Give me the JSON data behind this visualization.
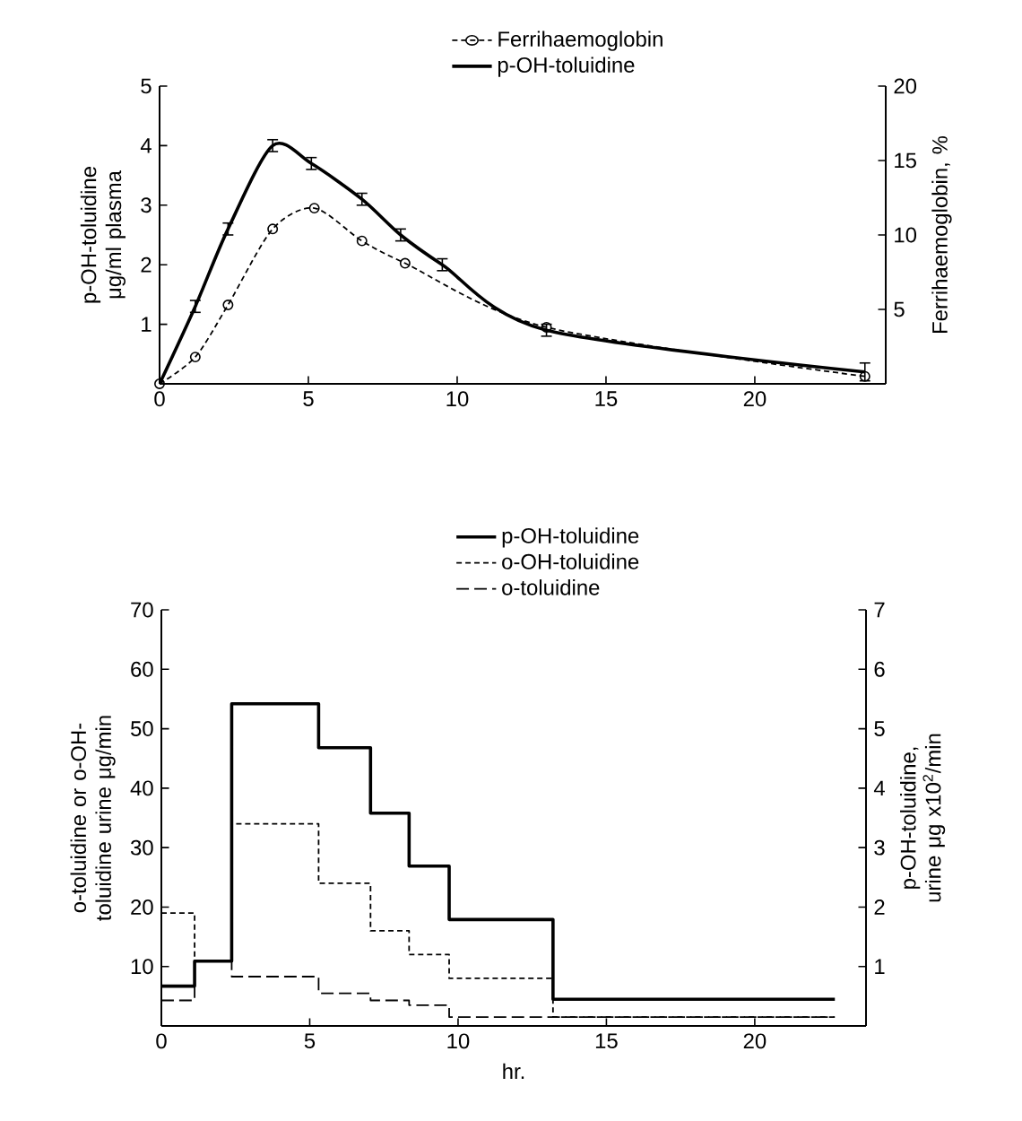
{
  "chart_data": [
    {
      "type": "line",
      "xlim": [
        0,
        24.4
      ],
      "xticks": [
        0,
        5,
        10,
        15,
        20
      ],
      "ylim": [
        0,
        5
      ],
      "yticks": [
        1,
        2,
        3,
        4,
        5
      ],
      "y2lim": [
        0,
        20
      ],
      "y2ticks": [
        5,
        10,
        15,
        20
      ],
      "ylabel": "p-OH-toluidine μg/ml plasma",
      "y2label": "Ferrihaemoglobin, %",
      "legend": "top",
      "series": [
        {
          "name": "Ferrihaemoglobin",
          "color": "#000000",
          "axis": "y2",
          "marker": "circle",
          "line_style": "dashed",
          "x": [
            0,
            1.2,
            2.3,
            3.8,
            5.2,
            6.8,
            8.25,
            13,
            23.7
          ],
          "values": [
            0,
            1.8,
            5.3,
            10.4,
            11.8,
            9.6,
            8.1,
            3.8,
            0.5
          ]
        },
        {
          "name": "p-OH-toluidine",
          "color": "#000000",
          "marker": "none",
          "line_style": "solid",
          "x": [
            0,
            1.2,
            2.3,
            3.8,
            5.1,
            6.8,
            8.1,
            9.5,
            13,
            23.7
          ],
          "values": [
            0,
            1.3,
            2.6,
            4.0,
            3.7,
            3.1,
            2.5,
            2.0,
            0.9,
            0.2
          ],
          "errors": [
            null,
            0.1,
            0.1,
            0.1,
            0.1,
            0.1,
            0.1,
            0.1,
            0.1,
            0.15
          ]
        }
      ]
    },
    {
      "type": "step",
      "xlim": [
        0,
        23.75
      ],
      "xticks": [
        0,
        5,
        10,
        15,
        20
      ],
      "ylim": [
        0,
        70
      ],
      "yticks": [
        10,
        20,
        30,
        40,
        50,
        60,
        70
      ],
      "y2lim": [
        0,
        7
      ],
      "y2ticks": [
        1,
        2,
        3,
        4,
        5,
        6,
        7
      ],
      "xlabel": "hr.",
      "ylabel": "o-toluidine or o-OH-toluidine urine μg/min",
      "y2label": "p-OH-toluidine, urine μg x10$^{2}$/min",
      "legend": "top",
      "series": [
        {
          "name": "p-OH-toluidine",
          "color": "#000000",
          "axis": "y2",
          "line_style": "solid",
          "x": [
            0,
            1.12,
            2.37,
            5.3,
            7.05,
            8.35,
            9.7,
            13.2,
            22.7
          ],
          "values": [
            0.67,
            1.09,
            5.42,
            4.68,
            3.58,
            2.69,
            1.79,
            0.45,
            0.45
          ]
        },
        {
          "name": "o-OH-toluidine",
          "color": "#000000",
          "line_style": "dashed",
          "x": [
            0,
            1.12,
            2.37,
            5.3,
            7.05,
            8.35,
            9.7,
            13.2,
            22.7
          ],
          "values": [
            19,
            11,
            34,
            24,
            16,
            12,
            8,
            1.5,
            1.5
          ]
        },
        {
          "name": "o-toluidine",
          "color": "#000000",
          "line_style": "dashed",
          "x": [
            0,
            1.12,
            2.37,
            5.3,
            7.05,
            8.35,
            9.7,
            13.2,
            22.7
          ],
          "values": [
            4.3,
            11,
            8.3,
            5.5,
            4.3,
            3.5,
            1.5,
            1.5,
            1.5
          ]
        }
      ]
    }
  ]
}
